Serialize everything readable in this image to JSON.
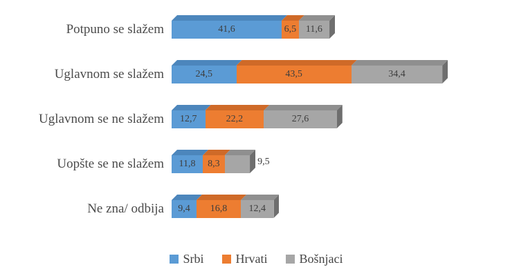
{
  "chart_data": {
    "type": "bar",
    "orientation": "horizontal",
    "stacked": true,
    "style": "3d",
    "title": "",
    "xlabel": "",
    "ylabel": "",
    "grid": false,
    "axes_visible": false,
    "legend_position": "bottom",
    "decimal_separator": ",",
    "categories": [
      "Potpuno se slažem",
      "Uglavnom se slažem",
      "Uglavnom se ne slažem",
      "Uopšte se ne slažem",
      "Ne zna/ odbija"
    ],
    "series": [
      {
        "name": "Srbi",
        "color": "#5B9BD5",
        "color_top": "#4C86BC",
        "values": [
          41.6,
          24.5,
          12.7,
          11.8,
          9.4
        ]
      },
      {
        "name": "Hrvati",
        "color": "#ED7D31",
        "color_top": "#CF6A28",
        "values": [
          6.5,
          43.5,
          22.2,
          8.3,
          16.8
        ]
      },
      {
        "name": "Bošnjaci",
        "color": "#A6A6A6",
        "color_top": "#8F8F8F",
        "values": [
          11.6,
          34.4,
          27.6,
          9.5,
          12.4
        ]
      }
    ],
    "end_cap_color": "#6E6E6E",
    "value_label_color": "#3D3D3D",
    "outside_label": {
      "category_index": 3,
      "series_index": 2
    },
    "xlim": [
      0,
      110
    ]
  }
}
